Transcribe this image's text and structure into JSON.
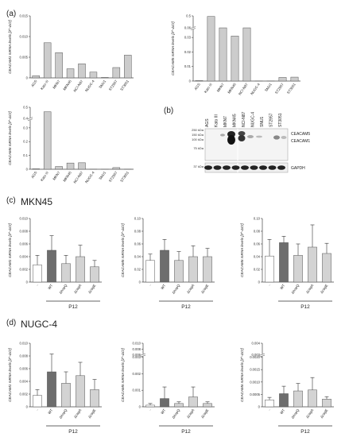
{
  "labels": {
    "panel_a": "(a)",
    "panel_b": "(b)",
    "panel_c": "(c)",
    "panel_d": "(d)",
    "row_c_title": "MKN45",
    "row_d_title": "NUGC-4"
  },
  "colors": {
    "bar_gray": "#cccccc",
    "bar_white": "#ffffff",
    "bar_dark": "#6d6d6d",
    "bar_light": "#d3d3d3",
    "axis": "#444444"
  },
  "blot": {
    "lane_labels": [
      "AGS",
      "Kato III",
      "MKN7",
      "MKN45",
      "NCI-N87",
      "NUGC-4",
      "SNU1",
      "ST2957",
      "ST3051"
    ],
    "mw_markers": [
      "250 kDa",
      "150 kDa",
      "100 kDa",
      "75 kDa",
      "37 kDa"
    ],
    "band_labels": [
      "CEACAM5",
      "CEACAM1",
      "GAPDH"
    ]
  },
  "chart_data": [
    {
      "id": "a1",
      "type": "bar",
      "ylabel": "CEACAM1 mRNA levels [2^-ΔCt]",
      "ylim": [
        0,
        0.015
      ],
      "yticks": [
        "0",
        "0.005",
        "0.010",
        "0.015"
      ],
      "categories": [
        "AGS",
        "Kato III",
        "MKN7",
        "MKN45",
        "NCI-N87",
        "NUGC-4",
        "SNU1",
        "ST2957",
        "ST3051"
      ],
      "values": [
        0.0005,
        0.0085,
        0.0061,
        0.0022,
        0.0034,
        0.0014,
        0.0001,
        0.0025,
        0.0055
      ]
    },
    {
      "id": "a2",
      "type": "bar",
      "ylabel": "CEACAM5 mRNA levels [2^-ΔCt]",
      "ylim": [
        0,
        0.5
      ],
      "break": [
        0.035,
        0.06
      ],
      "yticks": [
        "0",
        "0.01",
        "0.02",
        "0.03",
        "0.06",
        "0.5"
      ],
      "categories": [
        "AGS",
        "Kato III",
        "MKN7",
        "MKN45",
        "NCI-N87",
        "NUGC-4",
        "SNU1",
        "ST2957",
        "ST3051"
      ],
      "values": [
        0.0003,
        0.48,
        0.046,
        0.031,
        0.041,
        0.0001,
        0.0001,
        0.0025,
        0.0027
      ]
    },
    {
      "id": "a3",
      "type": "bar",
      "ylabel": "CEACAM6 mRNA levels [2^-ΔCt]",
      "ylim": [
        0,
        0.5
      ],
      "break": [
        0.35,
        0.4
      ],
      "yticks": [
        "0",
        "0.1",
        "0.2",
        "0.3",
        "0.4",
        "0.5"
      ],
      "categories": [
        "AGS",
        "Kato III",
        "MKN7",
        "MKN45",
        "NCI-N87",
        "NUGC-4",
        "SNU1",
        "ST2957",
        "ST3051"
      ],
      "values": [
        0.003,
        0.46,
        0.02,
        0.045,
        0.047,
        0.001,
        0.0005,
        0.012,
        0.001
      ]
    },
    {
      "id": "c1",
      "type": "bar",
      "group": "P12",
      "ylabel": "CEACAM1 mRNA levels [2^-ΔCt]",
      "ylim": [
        0,
        0.01
      ],
      "yticks": [
        "0",
        "0.002",
        "0.004",
        "0.006",
        "0.008",
        "0.010"
      ],
      "categories": [
        "-",
        "WT",
        "ΔhopQ",
        "ΔcagA",
        "ΔcagE"
      ],
      "values": [
        0.0027,
        0.005,
        0.0029,
        0.004,
        0.0024
      ],
      "errors": [
        0.0015,
        0.0023,
        0.0013,
        0.0018,
        0.001
      ]
    },
    {
      "id": "c2",
      "type": "bar",
      "group": "P12",
      "ylabel": "CEACAM5 mRNA levels [2^-ΔCt]",
      "ylim": [
        0,
        0.1
      ],
      "yticks": [
        "0",
        "0.02",
        "0.04",
        "0.06",
        "0.08",
        "0.10"
      ],
      "categories": [
        "-",
        "WT",
        "ΔhopQ",
        "ΔcagA",
        "ΔcagE"
      ],
      "values": [
        0.034,
        0.05,
        0.034,
        0.04,
        0.04
      ],
      "errors": [
        0.01,
        0.017,
        0.014,
        0.017,
        0.013
      ]
    },
    {
      "id": "c3",
      "type": "bar",
      "group": "P12",
      "ylabel": "CEACAM6 mRNA levels [2^-ΔCt]",
      "ylim": [
        0,
        0.1
      ],
      "yticks": [
        "0",
        "0.02",
        "0.04",
        "0.06",
        "0.08",
        "0.10"
      ],
      "categories": [
        "-",
        "WT",
        "ΔhopQ",
        "ΔcagA",
        "ΔcagE"
      ],
      "values": [
        0.041,
        0.062,
        0.042,
        0.055,
        0.045
      ],
      "errors": [
        0.026,
        0.01,
        0.018,
        0.035,
        0.016
      ]
    },
    {
      "id": "d1",
      "type": "bar",
      "group": "P12",
      "ylabel": "CEACAM1 mRNA levels [2^-ΔCt]",
      "ylim": [
        0,
        0.01
      ],
      "yticks": [
        "0",
        "0.002",
        "0.004",
        "0.006",
        "0.008",
        "0.010"
      ],
      "categories": [
        "-",
        "WT",
        "ΔhopQ",
        "ΔcagA",
        "ΔcagE"
      ],
      "values": [
        0.0018,
        0.0055,
        0.0037,
        0.0049,
        0.0027
      ],
      "errors": [
        0.0009,
        0.0028,
        0.0018,
        0.0021,
        0.0016
      ]
    },
    {
      "id": "d2",
      "type": "bar",
      "group": "P12",
      "ylabel": "CEACAM5 mRNA levels [2^-ΔCt]",
      "ylim": [
        0,
        0.01
      ],
      "break": [
        0.003,
        0.006
      ],
      "yticks": [
        "0",
        "0.001",
        "0.002",
        "0.003",
        "0.006",
        "0.008",
        "0.010"
      ],
      "categories": [
        "-",
        "WT",
        "ΔhopQ",
        "ΔcagA",
        "ΔcagE"
      ],
      "values": [
        0.0001,
        0.0005,
        0.0002,
        0.0006,
        0.0002
      ],
      "errors": [
        0.0001,
        0.0007,
        0.0001,
        0.0006,
        0.0001
      ]
    },
    {
      "id": "d3",
      "type": "bar",
      "group": "P12",
      "ylabel": "CEACAM6 mRNA levels [2^-ΔCt]",
      "ylim": [
        0,
        0.004
      ],
      "break": [
        0.002,
        0.003
      ],
      "yticks": [
        "0",
        "0.0005",
        "0.0010",
        "0.0015",
        "0.0020",
        "0.003",
        "0.004"
      ],
      "categories": [
        "-",
        "WT",
        "ΔhopQ",
        "ΔcagA",
        "ΔcagE"
      ],
      "values": [
        0.00028,
        0.00053,
        0.00064,
        0.00068,
        0.00031
      ],
      "errors": [
        0.0001,
        0.0003,
        0.0003,
        0.0005,
        0.0001
      ]
    }
  ]
}
